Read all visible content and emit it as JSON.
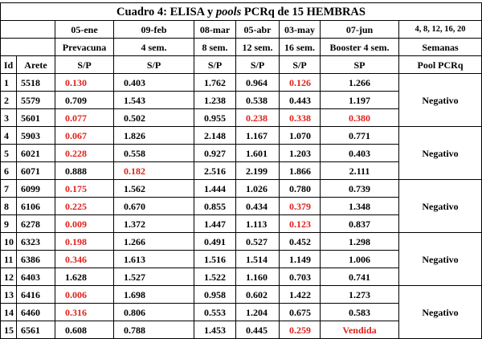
{
  "title": {
    "prefix": "Cuadro 4: ELISA y ",
    "pools": "pools",
    "suffix": " PCRq de 15 HEMBRAS"
  },
  "dates": [
    "05-ene",
    "09-feb",
    "08-mar",
    "05-abr",
    "03-may",
    "07-jun",
    "4, 8, 12, 16, 20"
  ],
  "phases": [
    "Prevacuna",
    "4 sem.",
    "8 sem.",
    "12 sem.",
    "16 sem.",
    "Booster 4 sem.",
    "Semanas"
  ],
  "headers": {
    "id": "Id",
    "arete": "Arete",
    "sp": "S/P",
    "sp_last": "SP",
    "pool": "Pool PCRq"
  },
  "rows": [
    {
      "id": "1",
      "arete": "5518",
      "v": [
        "0.130",
        "0.403",
        "1.762",
        "0.964",
        "0.126",
        "1.266"
      ],
      "red": [
        true,
        false,
        false,
        false,
        true,
        false
      ]
    },
    {
      "id": "2",
      "arete": "5579",
      "v": [
        "0.709",
        "1.543",
        "1.238",
        "0.538",
        "0.443",
        "1.197"
      ],
      "red": [
        false,
        false,
        false,
        false,
        false,
        false
      ]
    },
    {
      "id": "3",
      "arete": "5601",
      "v": [
        "0.077",
        "0.502",
        "0.955",
        "0.238",
        "0.338",
        "0.380"
      ],
      "red": [
        true,
        false,
        false,
        true,
        true,
        true
      ]
    },
    {
      "id": "4",
      "arete": "5903",
      "v": [
        "0.067",
        "1.826",
        "2.148",
        "1.167",
        "1.070",
        "0.771"
      ],
      "red": [
        true,
        false,
        false,
        false,
        false,
        false
      ]
    },
    {
      "id": "5",
      "arete": "6021",
      "v": [
        "0.228",
        "0.558",
        "0.927",
        "1.601",
        "1.203",
        "0.403"
      ],
      "red": [
        true,
        false,
        false,
        false,
        false,
        false
      ]
    },
    {
      "id": "6",
      "arete": "6071",
      "v": [
        "0.888",
        "0.182",
        "2.516",
        "2.199",
        "1.866",
        "2.111"
      ],
      "red": [
        false,
        true,
        false,
        false,
        false,
        false
      ]
    },
    {
      "id": "7",
      "arete": "6099",
      "v": [
        "0.175",
        "1.562",
        "1.444",
        "1.026",
        "0.780",
        "0.739"
      ],
      "red": [
        true,
        false,
        false,
        false,
        false,
        false
      ]
    },
    {
      "id": "8",
      "arete": "6106",
      "v": [
        "0.225",
        "0.670",
        "0.855",
        "0.434",
        "0.379",
        "1.348"
      ],
      "red": [
        true,
        false,
        false,
        false,
        true,
        false
      ]
    },
    {
      "id": "9",
      "arete": "6278",
      "v": [
        "0.009",
        "1.372",
        "1.447",
        "1.113",
        "0.123",
        "0.837"
      ],
      "red": [
        true,
        false,
        false,
        false,
        true,
        false
      ]
    },
    {
      "id": "10",
      "arete": "6323",
      "v": [
        "0.198",
        "1.266",
        "0.491",
        "0.527",
        "0.452",
        "1.298"
      ],
      "red": [
        true,
        false,
        false,
        false,
        false,
        false
      ]
    },
    {
      "id": "11",
      "arete": "6386",
      "v": [
        "0.346",
        "1.613",
        "1.516",
        "1.514",
        "1.149",
        "1.006"
      ],
      "red": [
        true,
        false,
        false,
        false,
        false,
        false
      ]
    },
    {
      "id": "12",
      "arete": "6403",
      "v": [
        "1.628",
        "1.527",
        "1.522",
        "1.160",
        "0.703",
        "0.741"
      ],
      "red": [
        false,
        false,
        false,
        false,
        false,
        false
      ]
    },
    {
      "id": "13",
      "arete": "6416",
      "v": [
        "0.006",
        "1.698",
        "0.958",
        "0.602",
        "1.422",
        "1.273"
      ],
      "red": [
        true,
        false,
        false,
        false,
        false,
        false
      ]
    },
    {
      "id": "14",
      "arete": "6460",
      "v": [
        "0.316",
        "0.806",
        "0.553",
        "1.204",
        "0.675",
        "0.583"
      ],
      "red": [
        true,
        false,
        false,
        false,
        false,
        false
      ]
    },
    {
      "id": "15",
      "arete": "6561",
      "v": [
        "0.608",
        "0.788",
        "1.453",
        "0.445",
        "0.259",
        "Vendida"
      ],
      "red": [
        false,
        false,
        false,
        false,
        true,
        true
      ]
    }
  ],
  "pools": [
    "Negativo",
    "Negativo",
    "Negativo",
    "Negativo",
    "Negativo"
  ],
  "colors": {
    "highlight_red": "#e0201a",
    "text": "#000000",
    "border": "#000000"
  }
}
